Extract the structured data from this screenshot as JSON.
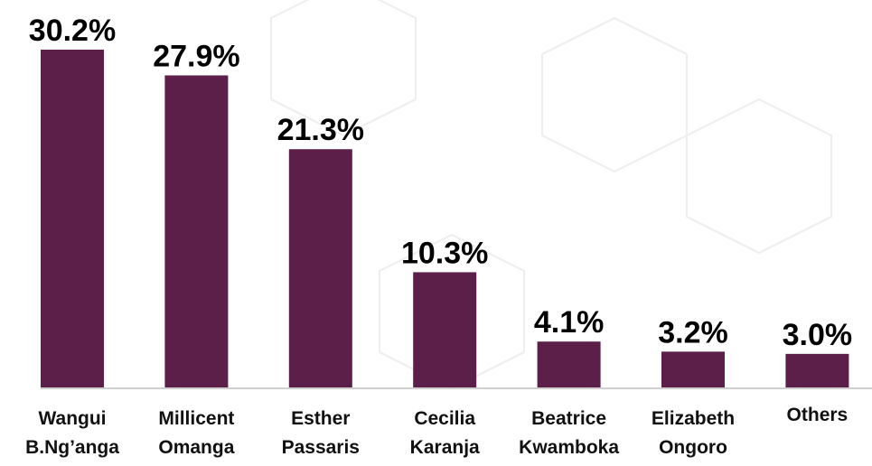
{
  "chart_data": {
    "type": "bar",
    "categories": [
      "Wangui B.Ng’anga",
      "Millicent Omanga",
      "Esther Passaris",
      "Cecilia Karanja",
      "Beatrice Kwamboka",
      "Elizabeth Ongoro",
      "Others"
    ],
    "values": [
      30.2,
      27.9,
      21.3,
      10.3,
      4.1,
      3.2,
      3.0
    ],
    "value_labels": [
      "30.2%",
      "27.9%",
      "21.3%",
      "10.3%",
      "4.1%",
      "3.2%",
      "3.0%"
    ],
    "color": "#5c1f4a",
    "ylim": [
      0,
      30.2
    ]
  }
}
